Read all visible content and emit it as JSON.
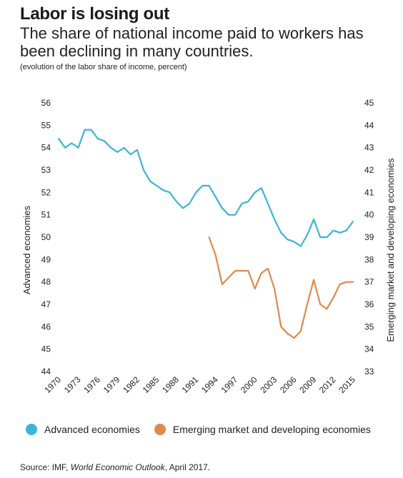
{
  "header": {
    "title": "Labor is losing out",
    "subtitle": "The share of national income paid to workers has been declining in many countries.",
    "note": "(evolution of the labor share of income, percent)"
  },
  "source": {
    "prefix": "Source: IMF, ",
    "publication": "World Economic Outlook",
    "suffix": ", April 2017."
  },
  "chart_data": {
    "type": "line",
    "title": "Labor is losing out",
    "x_ticks": [
      1970,
      1973,
      1976,
      1979,
      1982,
      1985,
      1988,
      1991,
      1994,
      1997,
      2000,
      2003,
      2006,
      2009,
      2012,
      2015
    ],
    "left_axis": {
      "label": "Advanced economies",
      "ylim": [
        44,
        56
      ],
      "ticks": [
        44,
        45,
        46,
        47,
        48,
        49,
        50,
        51,
        52,
        53,
        54,
        55,
        56
      ]
    },
    "right_axis": {
      "label": "Emerging market and developing economies",
      "ylim": [
        33,
        45
      ],
      "ticks": [
        33,
        34,
        35,
        36,
        37,
        38,
        39,
        40,
        41,
        42,
        43,
        44,
        45
      ]
    },
    "legend_position": "bottom",
    "grid": false,
    "series": [
      {
        "name": "Advanced economies",
        "axis": "left",
        "color": "#3cb4d6",
        "x": [
          1970,
          1971,
          1972,
          1973,
          1974,
          1975,
          1976,
          1977,
          1978,
          1979,
          1980,
          1981,
          1982,
          1983,
          1984,
          1985,
          1986,
          1987,
          1988,
          1989,
          1990,
          1991,
          1992,
          1993,
          1994,
          1995,
          1996,
          1997,
          1998,
          1999,
          2000,
          2001,
          2002,
          2003,
          2004,
          2005,
          2006,
          2007,
          2008,
          2009,
          2010,
          2011,
          2012,
          2013,
          2014,
          2015
        ],
        "values": [
          54.4,
          54.0,
          54.2,
          54.0,
          54.8,
          54.8,
          54.4,
          54.3,
          54.0,
          53.8,
          54.0,
          53.7,
          53.9,
          53.0,
          52.5,
          52.3,
          52.1,
          52.0,
          51.6,
          51.3,
          51.5,
          52.0,
          52.3,
          52.3,
          51.8,
          51.3,
          51.0,
          51.0,
          51.5,
          51.6,
          52.0,
          52.2,
          51.5,
          50.8,
          50.2,
          49.9,
          49.8,
          49.6,
          50.1,
          50.8,
          50.0,
          50.0,
          50.3,
          50.2,
          50.3,
          50.7
        ]
      },
      {
        "name": "Emerging market and developing economies",
        "axis": "right",
        "color": "#e0894a",
        "x": [
          1993,
          1994,
          1995,
          1996,
          1997,
          1998,
          1999,
          2000,
          2001,
          2002,
          2003,
          2004,
          2005,
          2006,
          2007,
          2008,
          2009,
          2010,
          2011,
          2012,
          2013,
          2014,
          2015
        ],
        "values": [
          39.0,
          38.2,
          36.9,
          37.2,
          37.5,
          37.5,
          37.5,
          36.7,
          37.4,
          37.6,
          36.7,
          35.0,
          34.7,
          34.5,
          34.8,
          36.0,
          37.1,
          36.0,
          35.8,
          36.3,
          36.9,
          37.0,
          37.0
        ]
      }
    ]
  }
}
